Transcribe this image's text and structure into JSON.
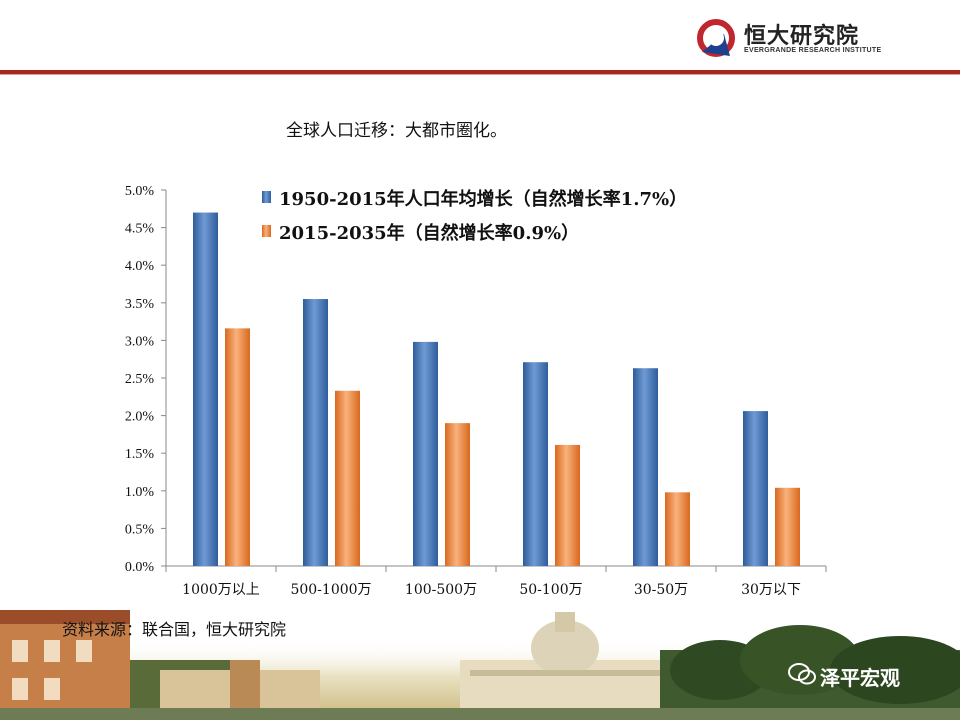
{
  "header": {
    "logo_text": "恒大研究院",
    "logo_subtext": "EVERGRANDE RESEARCH INSTITUTE"
  },
  "page": {
    "subtitle": "全球人口迁移：大都市圈化。",
    "source": "资料来源：联合国，恒大研究院",
    "watermark": "泽平宏观"
  },
  "colors": {
    "accent": "#a5291f",
    "series1": "#4f81bd",
    "series2": "#f79646"
  },
  "chart_data": {
    "type": "bar",
    "title": "",
    "xlabel": "",
    "ylabel": "",
    "categories": [
      "1000万以上",
      "500-1000万",
      "100-500万",
      "50-100万",
      "30-50万",
      "30万以下"
    ],
    "series": [
      {
        "name": "1950-2015年人口年均增长（自然增长率1.7%）",
        "values": [
          4.7,
          3.55,
          2.98,
          2.71,
          2.63,
          2.06
        ]
      },
      {
        "name": "2015-2035年（自然增长率0.9%）",
        "values": [
          3.16,
          2.33,
          1.9,
          1.61,
          0.98,
          1.04
        ]
      }
    ],
    "ylim": [
      0,
      5
    ],
    "yticks": [
      "0.0%",
      "0.5%",
      "1.0%",
      "1.5%",
      "2.0%",
      "2.5%",
      "3.0%",
      "3.5%",
      "4.0%",
      "4.5%",
      "5.0%"
    ],
    "legend_position": "top",
    "grid": false
  }
}
